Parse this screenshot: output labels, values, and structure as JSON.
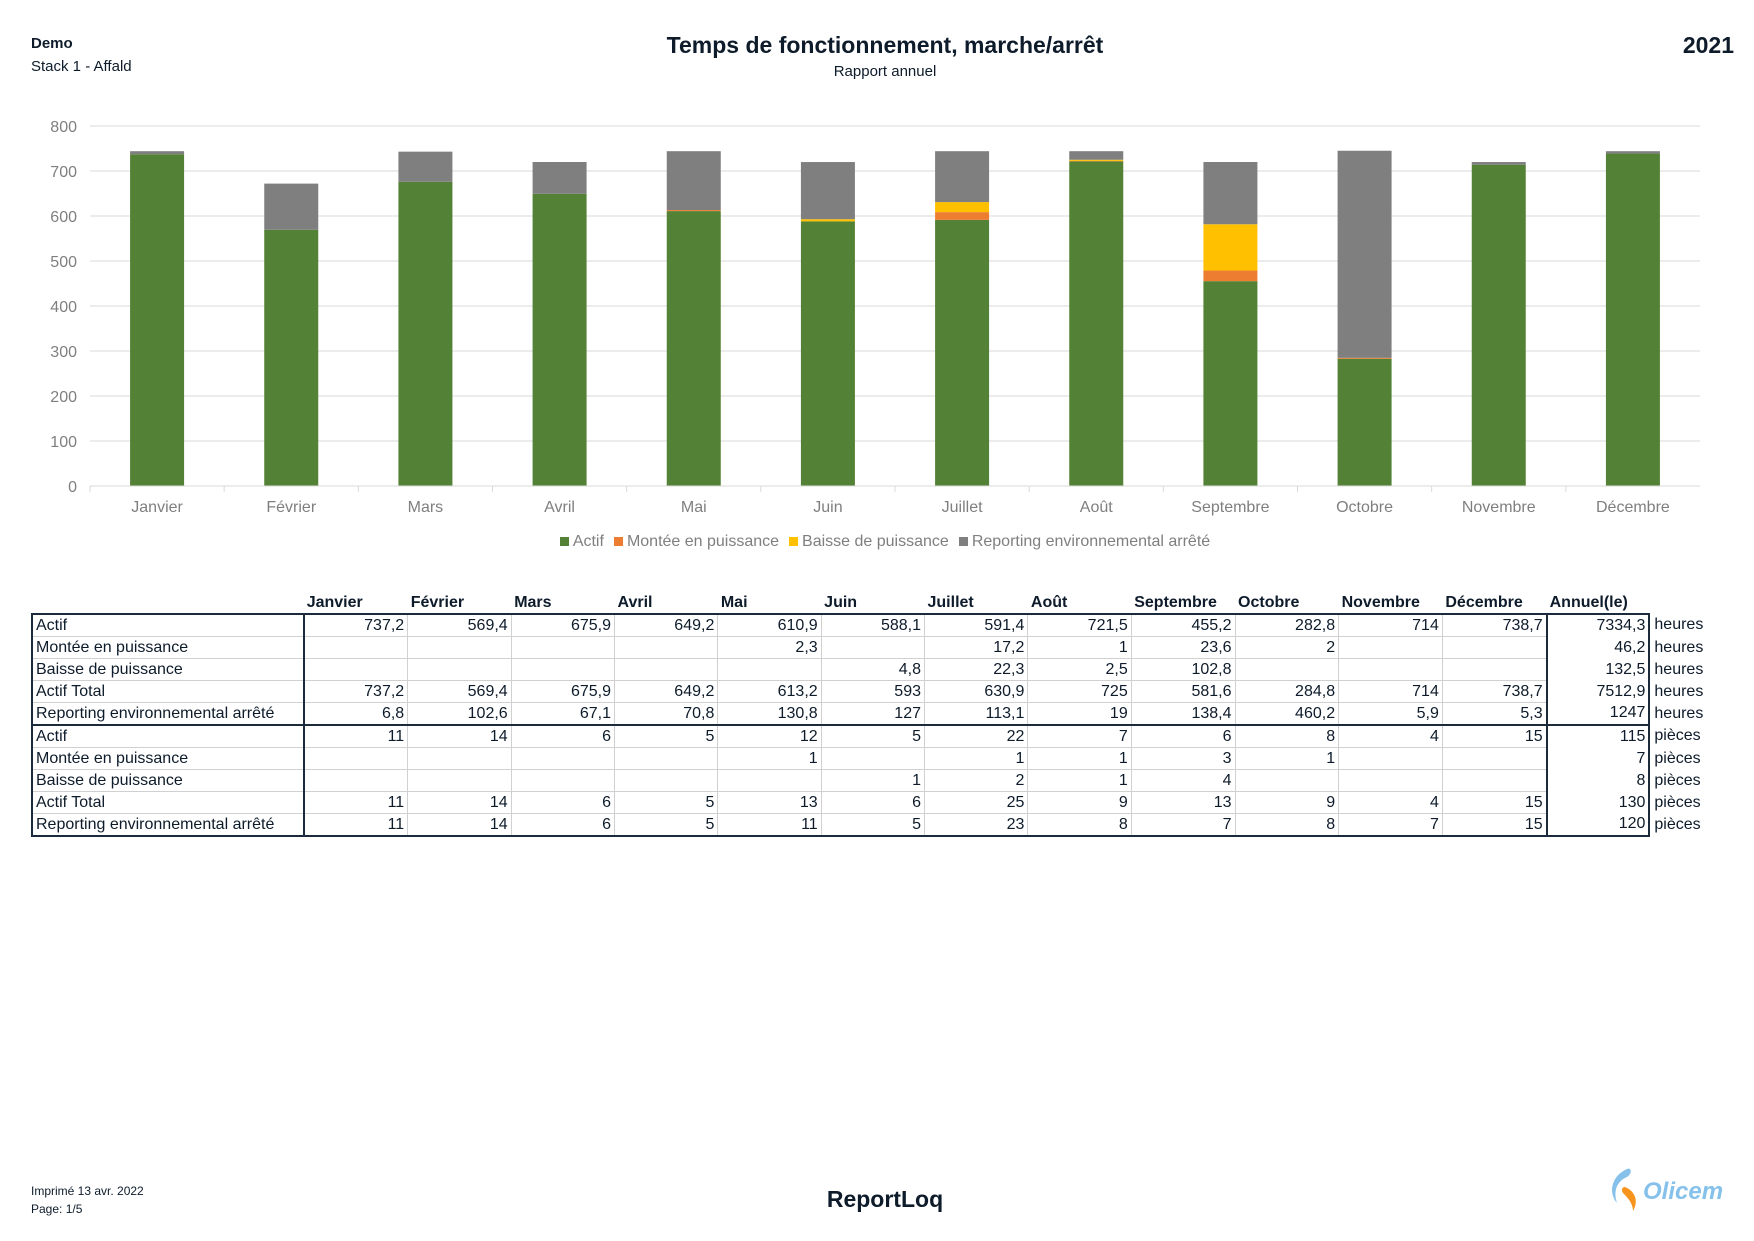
{
  "header": {
    "org": "Demo",
    "stack": "Stack 1 - Affald",
    "title": "Temps de fonctionnement, marche/arrêt",
    "subtitle": "Rapport annuel",
    "year": "2021"
  },
  "chart_data": {
    "type": "bar",
    "stacked": true,
    "categories": [
      "Janvier",
      "Février",
      "Mars",
      "Avril",
      "Mai",
      "Juin",
      "Juillet",
      "Août",
      "Septembre",
      "Octobre",
      "Novembre",
      "Décembre"
    ],
    "ylim": [
      0,
      800
    ],
    "yticks": [
      0,
      100,
      200,
      300,
      400,
      500,
      600,
      700,
      800
    ],
    "grid": true,
    "legend": "bottom",
    "series": [
      {
        "name": "Actif",
        "color": "#538135",
        "values": [
          737.2,
          569.4,
          675.9,
          649.2,
          610.9,
          588.1,
          591.4,
          721.5,
          455.2,
          282.8,
          714,
          738.7
        ]
      },
      {
        "name": "Montée en puissance",
        "color": "#ed7d31",
        "values": [
          0,
          0,
          0,
          0,
          2.3,
          0,
          17.2,
          1,
          23.6,
          2,
          0,
          0
        ]
      },
      {
        "name": "Baisse de puissance",
        "color": "#ffc000",
        "values": [
          0,
          0,
          0,
          0,
          0,
          4.8,
          22.3,
          2.5,
          102.8,
          0,
          0,
          0
        ]
      },
      {
        "name": "Reporting environnemental arrêté",
        "color": "#7f7f7f",
        "values": [
          6.8,
          102.6,
          67.1,
          70.8,
          130.8,
          127,
          113.1,
          19,
          138.4,
          460.2,
          5.9,
          5.3
        ]
      }
    ]
  },
  "table": {
    "headers": [
      "Janvier",
      "Février",
      "Mars",
      "Avril",
      "Mai",
      "Juin",
      "Juillet",
      "Août",
      "Septembre",
      "Octobre",
      "Novembre",
      "Décembre",
      "Annuel(le)"
    ],
    "groups": [
      {
        "rows": [
          {
            "label": "Actif",
            "values": [
              "737,2",
              "569,4",
              "675,9",
              "649,2",
              "610,9",
              "588,1",
              "591,4",
              "721,5",
              "455,2",
              "282,8",
              "714",
              "738,7"
            ],
            "annual": "7334,3",
            "unit": "heures"
          },
          {
            "label": "Montée en puissance",
            "values": [
              "",
              "",
              "",
              "",
              "2,3",
              "",
              "17,2",
              "1",
              "23,6",
              "2",
              "",
              ""
            ],
            "annual": "46,2",
            "unit": "heures"
          },
          {
            "label": "Baisse de puissance",
            "values": [
              "",
              "",
              "",
              "",
              "",
              "4,8",
              "22,3",
              "2,5",
              "102,8",
              "",
              "",
              ""
            ],
            "annual": "132,5",
            "unit": "heures"
          },
          {
            "label": "Actif Total",
            "values": [
              "737,2",
              "569,4",
              "675,9",
              "649,2",
              "613,2",
              "593",
              "630,9",
              "725",
              "581,6",
              "284,8",
              "714",
              "738,7"
            ],
            "annual": "7512,9",
            "unit": "heures"
          },
          {
            "label": "Reporting environnemental arrêté",
            "values": [
              "6,8",
              "102,6",
              "67,1",
              "70,8",
              "130,8",
              "127",
              "113,1",
              "19",
              "138,4",
              "460,2",
              "5,9",
              "5,3"
            ],
            "annual": "1247",
            "unit": "heures"
          }
        ]
      },
      {
        "rows": [
          {
            "label": "Actif",
            "values": [
              "11",
              "14",
              "6",
              "5",
              "12",
              "5",
              "22",
              "7",
              "6",
              "8",
              "4",
              "15"
            ],
            "annual": "115",
            "unit": "pièces"
          },
          {
            "label": "Montée en puissance",
            "values": [
              "",
              "",
              "",
              "",
              "1",
              "",
              "1",
              "1",
              "3",
              "1",
              "",
              ""
            ],
            "annual": "7",
            "unit": "pièces"
          },
          {
            "label": "Baisse de puissance",
            "values": [
              "",
              "",
              "",
              "",
              "",
              "1",
              "2",
              "1",
              "4",
              "",
              "",
              ""
            ],
            "annual": "8",
            "unit": "pièces"
          },
          {
            "label": "Actif Total",
            "values": [
              "11",
              "14",
              "6",
              "5",
              "13",
              "6",
              "25",
              "9",
              "13",
              "9",
              "4",
              "15"
            ],
            "annual": "130",
            "unit": "pièces"
          },
          {
            "label": "Reporting environnemental arrêté",
            "values": [
              "11",
              "14",
              "6",
              "5",
              "11",
              "5",
              "23",
              "8",
              "7",
              "8",
              "7",
              "15"
            ],
            "annual": "120",
            "unit": "pièces"
          }
        ]
      }
    ]
  },
  "footer": {
    "printed": "Imprimé 13 avr. 2022",
    "page": "Page: 1/5",
    "brand": "ReportLoq",
    "logo_text": "Olicem"
  }
}
